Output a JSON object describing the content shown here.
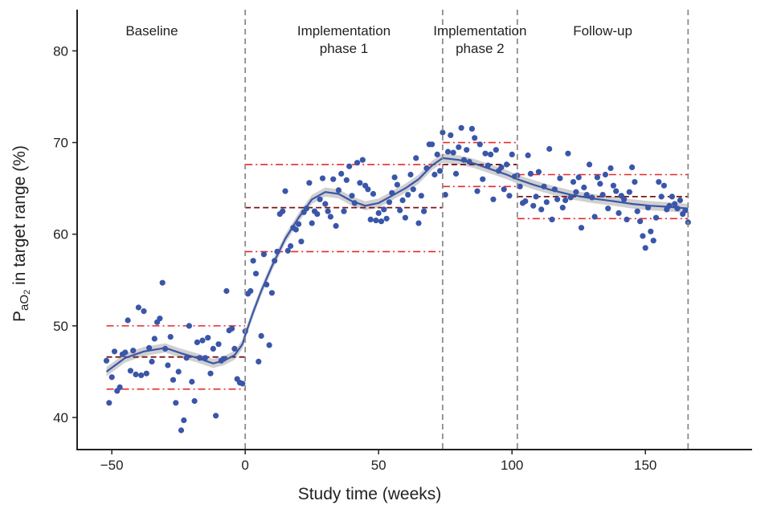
{
  "colors": {
    "points": "#3a56a8",
    "smooth": "#3a56a8",
    "band": "#c8c8c8",
    "mean_line": "#7a1414",
    "limit_line": "#e8272b",
    "phase_divider": "#8c8c8c"
  },
  "chart_data": {
    "type": "scatter",
    "xlabel": "Study time (weeks)",
    "ylabel_main": "P",
    "ylabel_sub": "aO",
    "ylabel_subsub": "2",
    "ylabel_rest": " in target range (%)",
    "xlim": [
      -63,
      190
    ],
    "ylim": [
      36.5,
      84.5
    ],
    "xticks": [
      -50,
      0,
      50,
      100,
      150
    ],
    "xtick_labels": [
      "−50",
      "0",
      "50",
      "100",
      "150"
    ],
    "yticks": [
      40,
      50,
      60,
      70,
      80
    ],
    "ytick_labels": [
      "40",
      "50",
      "60",
      "70",
      "80"
    ],
    "grid": false,
    "phase_boundaries": [
      0,
      74,
      102,
      166
    ],
    "phases": [
      {
        "lines": [
          "Baseline"
        ],
        "x": -35
      },
      {
        "lines": [
          "Implementation",
          "phase 1"
        ],
        "x": 37
      },
      {
        "lines": [
          "Implementation",
          "phase 2"
        ],
        "x": 88
      },
      {
        "lines": [
          "Follow-up"
        ],
        "x": 134
      }
    ],
    "control_limits": [
      {
        "x0": -52,
        "x1": 0,
        "mean": 46.6,
        "ucl": 50.0,
        "lcl": 43.1
      },
      {
        "x0": 0,
        "x1": 74,
        "mean": 62.9,
        "ucl": 67.6,
        "lcl": 58.1
      },
      {
        "x0": 74,
        "x1": 102,
        "mean": 67.6,
        "ucl": 70.0,
        "lcl": 65.2
      },
      {
        "x0": 102,
        "x1": 166,
        "mean": 64.1,
        "ucl": 66.5,
        "lcl": 61.7
      }
    ],
    "smooth": [
      [
        -52,
        45.0
      ],
      [
        -45,
        46.5
      ],
      [
        -38,
        47.2
      ],
      [
        -30,
        47.6
      ],
      [
        -24,
        47.0
      ],
      [
        -18,
        46.5
      ],
      [
        -12,
        45.9
      ],
      [
        -8,
        46.2
      ],
      [
        -4,
        46.8
      ],
      [
        -1,
        48.0
      ],
      [
        0,
        49.0
      ],
      [
        3,
        51.5
      ],
      [
        6,
        53.8
      ],
      [
        10,
        56.5
      ],
      [
        15,
        59.5
      ],
      [
        20,
        61.8
      ],
      [
        25,
        63.8
      ],
      [
        30,
        64.6
      ],
      [
        35,
        64.4
      ],
      [
        40,
        63.6
      ],
      [
        45,
        63.1
      ],
      [
        50,
        63.4
      ],
      [
        55,
        64.2
      ],
      [
        60,
        65.0
      ],
      [
        65,
        66.0
      ],
      [
        70,
        67.5
      ],
      [
        74,
        68.3
      ],
      [
        80,
        68.1
      ],
      [
        86,
        67.7
      ],
      [
        92,
        67.1
      ],
      [
        98,
        66.5
      ],
      [
        102,
        66.0
      ],
      [
        108,
        65.4
      ],
      [
        115,
        64.8
      ],
      [
        122,
        64.3
      ],
      [
        130,
        63.9
      ],
      [
        138,
        63.6
      ],
      [
        145,
        63.3
      ],
      [
        152,
        63.1
      ],
      [
        158,
        63.0
      ],
      [
        166,
        62.8
      ]
    ],
    "points": [
      [
        -52,
        46.2
      ],
      [
        -51,
        41.6
      ],
      [
        -50,
        44.4
      ],
      [
        -49,
        47.2
      ],
      [
        -48,
        42.9
      ],
      [
        -47,
        43.3
      ],
      [
        -46,
        46.9
      ],
      [
        -45,
        47.1
      ],
      [
        -44,
        50.6
      ],
      [
        -43,
        45.1
      ],
      [
        -42,
        47.3
      ],
      [
        -41,
        44.7
      ],
      [
        -40,
        52.0
      ],
      [
        -39,
        44.6
      ],
      [
        -38,
        51.6
      ],
      [
        -37,
        44.8
      ],
      [
        -36,
        47.6
      ],
      [
        -35,
        46.1
      ],
      [
        -34,
        48.6
      ],
      [
        -33,
        50.4
      ],
      [
        -32,
        50.8
      ],
      [
        -31,
        54.7
      ],
      [
        -30,
        47.5
      ],
      [
        -29,
        45.7
      ],
      [
        -28,
        48.8
      ],
      [
        -27,
        44.1
      ],
      [
        -26,
        41.6
      ],
      [
        -25,
        45.0
      ],
      [
        -24,
        38.6
      ],
      [
        -23,
        39.7
      ],
      [
        -22,
        46.5
      ],
      [
        -21,
        50.0
      ],
      [
        -20,
        43.9
      ],
      [
        -19,
        41.8
      ],
      [
        -18,
        48.2
      ],
      [
        -17,
        46.5
      ],
      [
        -16,
        48.4
      ],
      [
        -15,
        46.5
      ],
      [
        -14,
        48.7
      ],
      [
        -13,
        44.8
      ],
      [
        -12,
        47.5
      ],
      [
        -11,
        40.2
      ],
      [
        -10,
        48.0
      ],
      [
        -9,
        46.2
      ],
      [
        -8,
        46.4
      ],
      [
        -7,
        53.8
      ],
      [
        -6,
        49.5
      ],
      [
        -5,
        49.7
      ],
      [
        -4,
        47.5
      ],
      [
        -3,
        44.2
      ],
      [
        -2,
        43.8
      ],
      [
        -1,
        43.7
      ],
      [
        0,
        49.4
      ],
      [
        1,
        53.5
      ],
      [
        2,
        53.8
      ],
      [
        3,
        57.1
      ],
      [
        4,
        55.7
      ],
      [
        5,
        46.1
      ],
      [
        6,
        48.9
      ],
      [
        7,
        57.8
      ],
      [
        8,
        54.5
      ],
      [
        9,
        47.9
      ],
      [
        10,
        53.6
      ],
      [
        11,
        57.1
      ],
      [
        12,
        58.1
      ],
      [
        13,
        62.2
      ],
      [
        14,
        62.5
      ],
      [
        15,
        64.7
      ],
      [
        16,
        58.2
      ],
      [
        17,
        58.7
      ],
      [
        18,
        60.7
      ],
      [
        19,
        60.5
      ],
      [
        20,
        61.1
      ],
      [
        21,
        59.2
      ],
      [
        22,
        62.4
      ],
      [
        23,
        62.8
      ],
      [
        24,
        65.6
      ],
      [
        25,
        61.2
      ],
      [
        26,
        62.5
      ],
      [
        27,
        62.2
      ],
      [
        28,
        63.8
      ],
      [
        29,
        66.1
      ],
      [
        30,
        63.3
      ],
      [
        31,
        62.5
      ],
      [
        32,
        61.9
      ],
      [
        33,
        66.0
      ],
      [
        34,
        60.9
      ],
      [
        35,
        64.8
      ],
      [
        36,
        66.6
      ],
      [
        37,
        62.5
      ],
      [
        38,
        65.9
      ],
      [
        39,
        67.4
      ],
      [
        40,
        64.2
      ],
      [
        41,
        63.4
      ],
      [
        42,
        67.8
      ],
      [
        43,
        65.6
      ],
      [
        44,
        68.1
      ],
      [
        45,
        65.3
      ],
      [
        46,
        64.9
      ],
      [
        47,
        61.6
      ],
      [
        48,
        64.4
      ],
      [
        49,
        61.5
      ],
      [
        50,
        62.3
      ],
      [
        51,
        61.4
      ],
      [
        52,
        62.7
      ],
      [
        53,
        61.7
      ],
      [
        54,
        63.5
      ],
      [
        55,
        64.5
      ],
      [
        56,
        66.2
      ],
      [
        57,
        65.4
      ],
      [
        58,
        62.6
      ],
      [
        59,
        63.7
      ],
      [
        60,
        61.8
      ],
      [
        61,
        64.3
      ],
      [
        62,
        66.5
      ],
      [
        63,
        64.9
      ],
      [
        64,
        68.3
      ],
      [
        65,
        61.2
      ],
      [
        66,
        64.2
      ],
      [
        67,
        62.5
      ],
      [
        68,
        67.2
      ],
      [
        69,
        69.8
      ],
      [
        70,
        69.8
      ],
      [
        71,
        66.5
      ],
      [
        72,
        68.7
      ],
      [
        73,
        66.9
      ],
      [
        74,
        71.1
      ],
      [
        75,
        64.3
      ],
      [
        76,
        69.0
      ],
      [
        77,
        70.8
      ],
      [
        78,
        68.9
      ],
      [
        79,
        66.6
      ],
      [
        80,
        69.5
      ],
      [
        81,
        71.6
      ],
      [
        82,
        68.1
      ],
      [
        83,
        69.2
      ],
      [
        84,
        67.9
      ],
      [
        85,
        71.5
      ],
      [
        86,
        70.5
      ],
      [
        87,
        64.7
      ],
      [
        88,
        69.8
      ],
      [
        89,
        66.0
      ],
      [
        90,
        68.8
      ],
      [
        91,
        67.5
      ],
      [
        92,
        68.7
      ],
      [
        93,
        63.8
      ],
      [
        94,
        69.2
      ],
      [
        95,
        66.9
      ],
      [
        96,
        67.3
      ],
      [
        97,
        64.9
      ],
      [
        98,
        67.6
      ],
      [
        99,
        64.2
      ],
      [
        100,
        68.7
      ],
      [
        101,
        66.3
      ],
      [
        102,
        66.4
      ],
      [
        103,
        65.2
      ],
      [
        104,
        63.4
      ],
      [
        105,
        63.6
      ],
      [
        106,
        68.6
      ],
      [
        107,
        66.6
      ],
      [
        108,
        63.1
      ],
      [
        109,
        64.1
      ],
      [
        110,
        66.8
      ],
      [
        111,
        62.7
      ],
      [
        112,
        65.2
      ],
      [
        113,
        63.5
      ],
      [
        114,
        69.3
      ],
      [
        115,
        61.6
      ],
      [
        116,
        64.9
      ],
      [
        117,
        63.8
      ],
      [
        118,
        66.1
      ],
      [
        119,
        62.9
      ],
      [
        120,
        63.7
      ],
      [
        121,
        68.8
      ],
      [
        122,
        64.0
      ],
      [
        123,
        65.7
      ],
      [
        124,
        64.6
      ],
      [
        125,
        66.2
      ],
      [
        126,
        60.7
      ],
      [
        127,
        65.1
      ],
      [
        128,
        64.3
      ],
      [
        129,
        67.6
      ],
      [
        130,
        64.0
      ],
      [
        131,
        61.9
      ],
      [
        132,
        66.2
      ],
      [
        133,
        65.5
      ],
      [
        134,
        64.3
      ],
      [
        135,
        66.5
      ],
      [
        136,
        62.8
      ],
      [
        137,
        67.2
      ],
      [
        138,
        65.3
      ],
      [
        139,
        64.7
      ],
      [
        140,
        62.3
      ],
      [
        141,
        64.2
      ],
      [
        142,
        63.8
      ],
      [
        143,
        61.6
      ],
      [
        144,
        64.6
      ],
      [
        145,
        67.3
      ],
      [
        146,
        65.7
      ],
      [
        147,
        62.5
      ],
      [
        148,
        61.4
      ],
      [
        149,
        59.8
      ],
      [
        150,
        58.5
      ],
      [
        151,
        62.9
      ],
      [
        152,
        60.3
      ],
      [
        153,
        59.3
      ],
      [
        154,
        61.8
      ],
      [
        155,
        65.7
      ],
      [
        156,
        64.1
      ],
      [
        157,
        65.3
      ],
      [
        158,
        62.7
      ],
      [
        159,
        63.1
      ],
      [
        160,
        64.1
      ],
      [
        161,
        63.3
      ],
      [
        162,
        62.8
      ],
      [
        163,
        63.7
      ],
      [
        164,
        62.2
      ],
      [
        165,
        62.6
      ],
      [
        166,
        61.3
      ]
    ]
  }
}
